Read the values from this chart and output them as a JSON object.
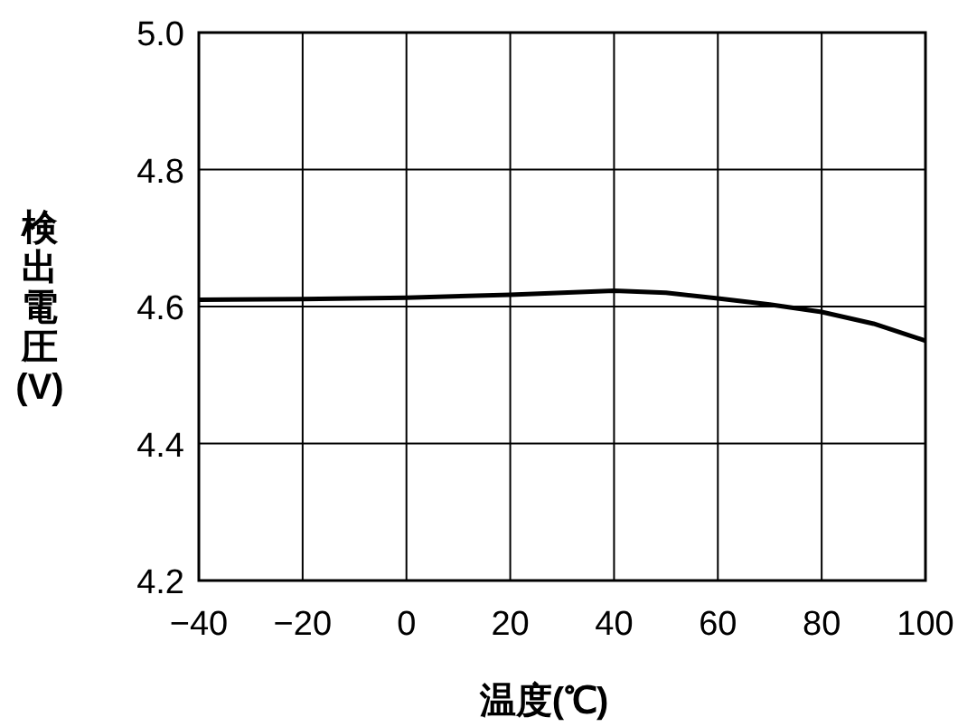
{
  "chart_data": {
    "type": "line",
    "xlabel": "温度(℃)",
    "ylabel": "検出電圧(V)",
    "x": [
      -40,
      -20,
      0,
      20,
      40,
      50,
      60,
      70,
      80,
      90,
      100
    ],
    "series": [
      {
        "color": "#000000",
        "values": [
          4.61,
          4.611,
          4.613,
          4.617,
          4.623,
          4.62,
          4.612,
          4.603,
          4.592,
          4.575,
          4.55
        ]
      }
    ],
    "xlim": [
      -40,
      100
    ],
    "ylim": [
      4.2,
      5.0
    ],
    "xticks": [
      {
        "value": -40,
        "label": "−40"
      },
      {
        "value": -20,
        "label": "−20"
      },
      0,
      20,
      40,
      60,
      80,
      100
    ],
    "yticks": [
      4.2,
      4.4,
      4.6,
      4.8,
      {
        "value": 5.0,
        "label": "5.0"
      }
    ],
    "grid": true,
    "line_style": "solid",
    "marker": "none"
  }
}
